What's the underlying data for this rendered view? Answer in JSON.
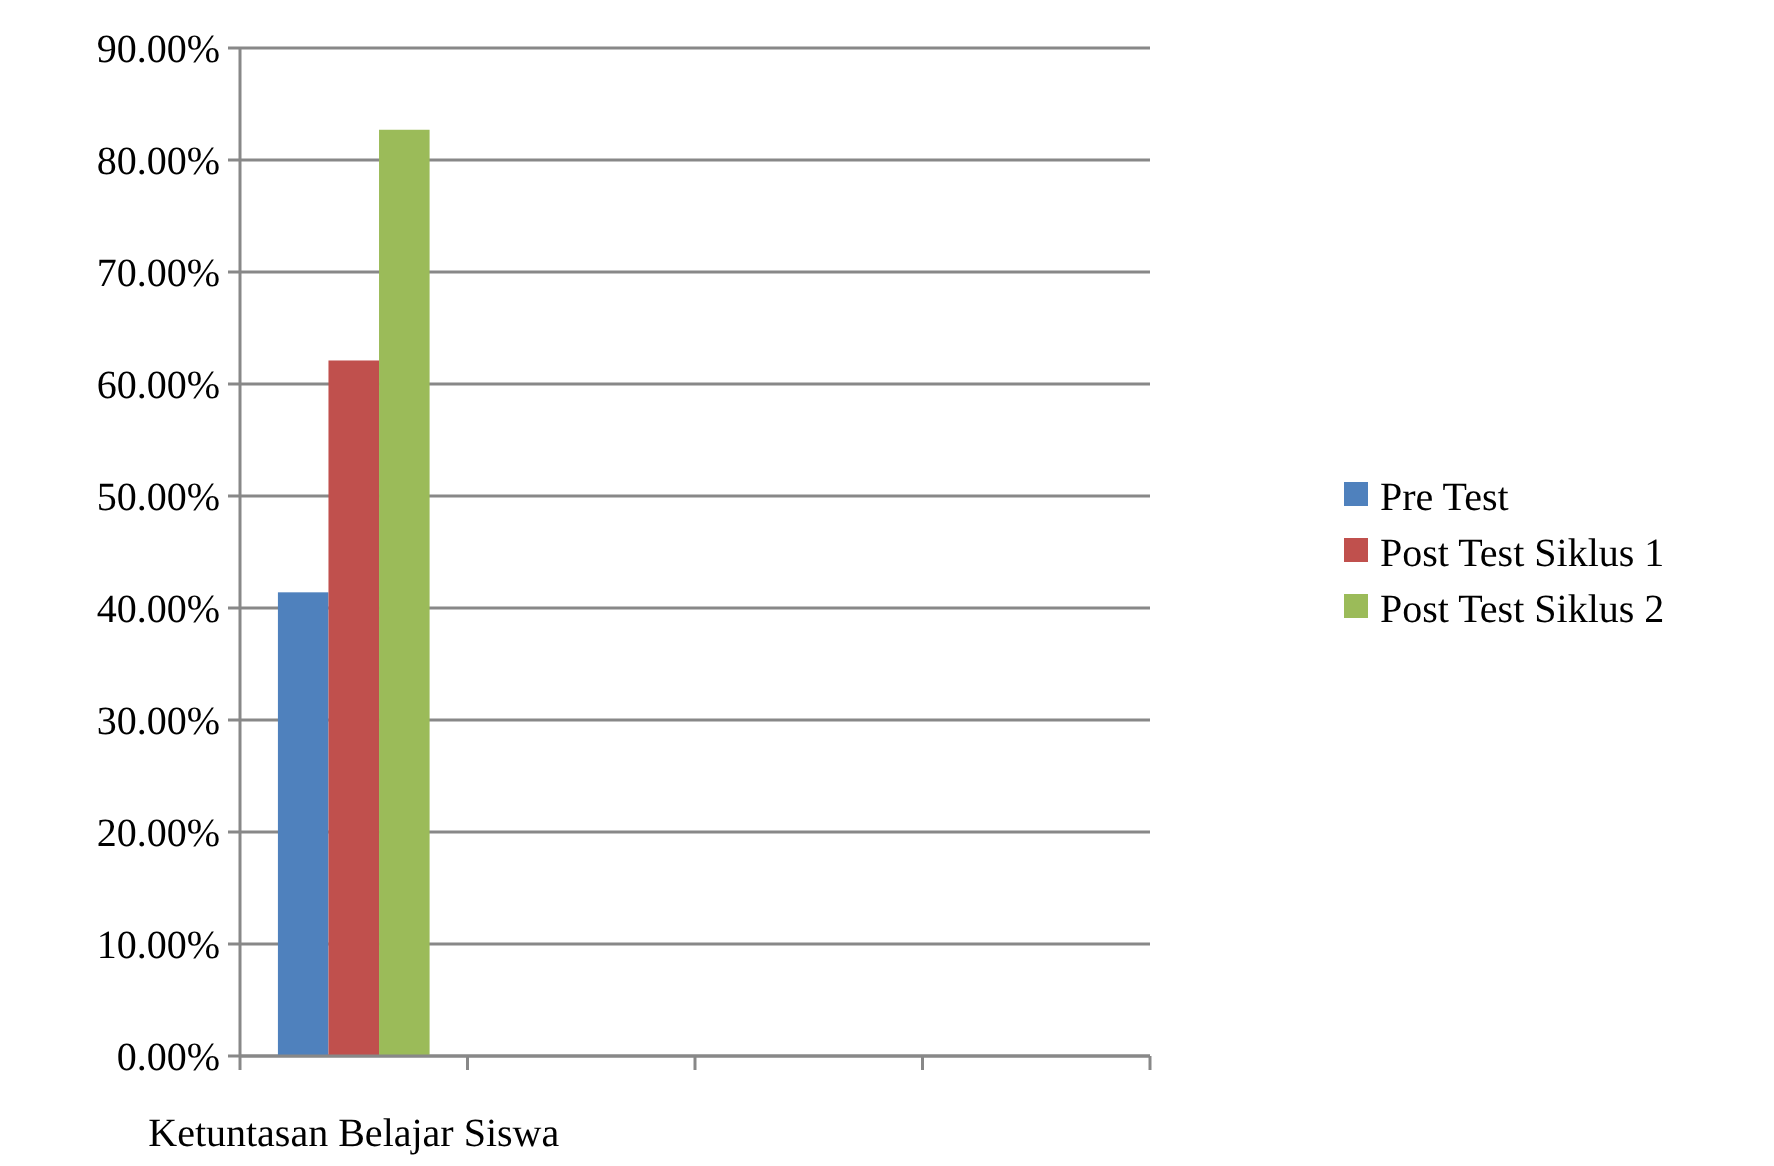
{
  "chart_data": {
    "type": "bar",
    "categories": [
      "Ketuntasan Belajar Siswa",
      null,
      null,
      null
    ],
    "series": [
      {
        "name": "Pre Test",
        "color": "#4f81bd",
        "values": [
          41.4,
          null,
          null,
          null
        ]
      },
      {
        "name": "Post Test Siklus 1",
        "color": "#c0504d",
        "values": [
          62.1,
          null,
          null,
          null
        ]
      },
      {
        "name": "Post Test Siklus 2",
        "color": "#9bbb59",
        "values": [
          82.7,
          null,
          null,
          null
        ]
      }
    ],
    "ylim": [
      0,
      90
    ],
    "yticks": [
      {
        "value": 0,
        "label": "0.00%"
      },
      {
        "value": 10,
        "label": "10.00%"
      },
      {
        "value": 20,
        "label": "20.00%"
      },
      {
        "value": 30,
        "label": "30.00%"
      },
      {
        "value": 40,
        "label": "40.00%"
      },
      {
        "value": 50,
        "label": "50.00%"
      },
      {
        "value": 60,
        "label": "60.00%"
      },
      {
        "value": 70,
        "label": "70.00%"
      },
      {
        "value": 80,
        "label": "80.00%"
      },
      {
        "value": 90,
        "label": "90.00%"
      }
    ],
    "grid": "y",
    "legend": "right"
  }
}
